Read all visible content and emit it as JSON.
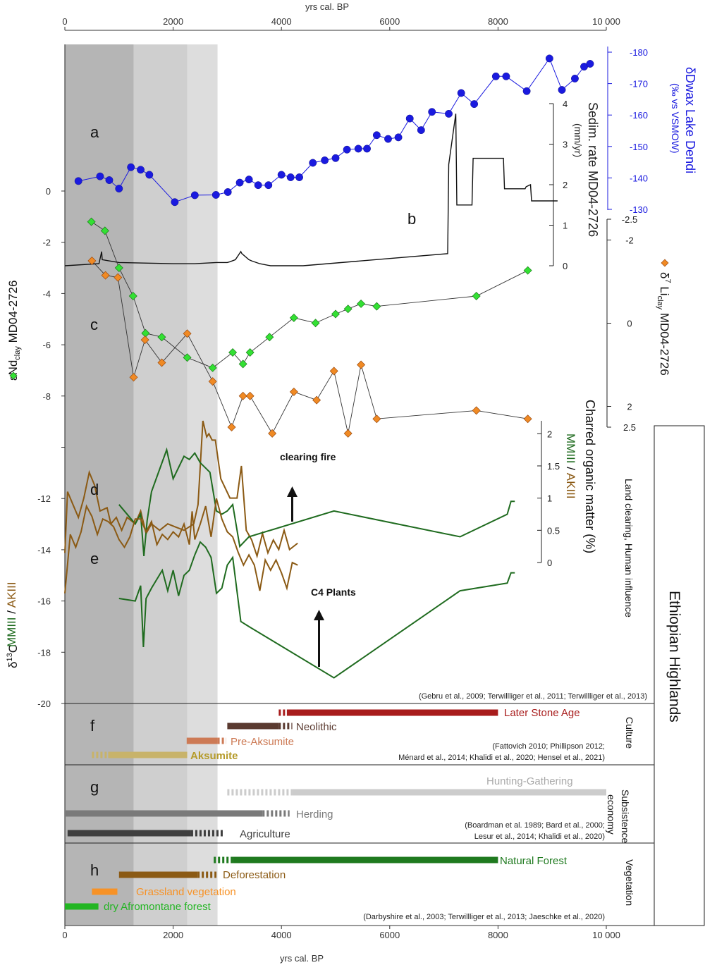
{
  "chart_data": {
    "type": "line",
    "x_axis": {
      "title": "yrs cal. BP",
      "range": [
        0,
        10000
      ],
      "ticks": [
        0,
        2000,
        4000,
        6000,
        8000,
        10000
      ],
      "tick_labels": [
        "0",
        "2000",
        "4000",
        "6000",
        "8000",
        "10 000"
      ]
    },
    "shading": [
      {
        "from": 0,
        "to": 1270,
        "color": "#b5b5b5"
      },
      {
        "from": 1270,
        "to": 2260,
        "color": "#cfcfcf"
      },
      {
        "from": 2260,
        "to": 2820,
        "color": "#dddddd"
      }
    ],
    "colors": {
      "blue": "#1a1adf",
      "green": "#1f6b1f",
      "brown": "#8b5a14",
      "orange": "#f08a24",
      "lime": "#2ecc2e"
    },
    "panels": {
      "a": {
        "letter": "a",
        "name": "δDwax Lake Dendi",
        "unit": "(‰ vs VSMOW)",
        "ticks": [
          -180,
          -170,
          -160,
          -150,
          -140,
          -130
        ],
        "tick_labels": [
          "-180",
          "-170",
          "-160",
          "-150",
          "-140",
          "-130"
        ],
        "range": [
          -130,
          -180
        ],
        "x": [
          250,
          650,
          820,
          1000,
          1220,
          1400,
          1560,
          2030,
          2400,
          2790,
          3010,
          3230,
          3400,
          3570,
          3760,
          4000,
          4170,
          4330,
          4580,
          4800,
          5000,
          5210,
          5420,
          5580,
          5760,
          5970,
          6160,
          6370,
          6580,
          6780,
          7090,
          7320,
          7560,
          7960,
          8150,
          8530,
          8950,
          9180,
          9420,
          9590,
          9700
        ],
        "y": [
          -139,
          -140.5,
          -139.3,
          -136.6,
          -143.4,
          -142.6,
          -141,
          -132.3,
          -134.5,
          -134.6,
          -135.5,
          -138.5,
          -139.5,
          -137.7,
          -137.7,
          -141,
          -140.2,
          -140.2,
          -144.8,
          -145.6,
          -146.3,
          -149,
          -149.3,
          -149.3,
          -153.6,
          -152.4,
          -152.9,
          -158.9,
          -155.2,
          -161,
          -160.4,
          -167,
          -163.5,
          -172.3,
          -172.3,
          -167.6,
          -178,
          -168,
          -171.6,
          -175.4,
          -176.3
        ]
      },
      "b": {
        "letter": "b",
        "name": "Sedim. rate MD04-2726",
        "unit": "(mm/yr)",
        "ticks": [
          0,
          1,
          2,
          3,
          4
        ],
        "tick_labels": [
          "0",
          "1",
          "2",
          "3",
          "4"
        ],
        "x": [
          0,
          620,
          630,
          680,
          690,
          1000,
          2000,
          2400,
          2800,
          3000,
          3050,
          3150,
          3250,
          3270,
          3400,
          3450,
          3600,
          3800,
          4400,
          7070,
          7090,
          7220,
          7240,
          7360,
          7380,
          7520,
          7540,
          8100,
          8120,
          8500,
          8520,
          8600,
          8620,
          9100
        ],
        "y": [
          0,
          0.05,
          0.05,
          0.35,
          0.15,
          0.08,
          0.05,
          0.05,
          0.08,
          0.08,
          0.1,
          0.15,
          0.35,
          0.3,
          0.15,
          0.12,
          0.05,
          0.0,
          0.0,
          0.3,
          2.5,
          3.75,
          1.5,
          1.5,
          1.5,
          1.5,
          2.65,
          2.65,
          1.9,
          1.9,
          1.95,
          2.0,
          1.6,
          1.6
        ]
      },
      "c": {
        "letter": "c",
        "series": [
          {
            "name": "εNd",
            "name_sub": "clay",
            "name_rest": "MD04-2726",
            "ticks": [
              0,
              -2,
              -4,
              -6,
              -8,
              -10,
              -12,
              -14,
              -16,
              -18,
              -20
            ],
            "tick_labels": [
              "0",
              "-2",
              "-4",
              "-6",
              "-8",
              "",
              "-12",
              "-14",
              "-16",
              "-18",
              "-20"
            ],
            "x": [
              490,
              740,
              1000,
              1260,
              1490,
              1790,
              2260,
              2730,
              3100,
              3290,
              3420,
              3780,
              4230,
              4630,
              5000,
              5230,
              5470,
              5760,
              7600,
              8550
            ],
            "y": [
              -1.2,
              -1.55,
              -3,
              -4.1,
              -5.55,
              -5.7,
              -6.5,
              -6.9,
              -6.3,
              -6.75,
              -6.3,
              -5.7,
              -4.95,
              -5.15,
              -4.8,
              -4.6,
              -4.4,
              -4.5,
              -4.1,
              -3.1
            ]
          },
          {
            "name": "δ",
            "name_sup": "7",
            "name_mid": "Li",
            "name_sub": "clay",
            "name_rest": "MD04-2726",
            "ticks": [
              -2.5,
              -2,
              0,
              2,
              2.5
            ],
            "tick_labels": [
              "-2.5",
              "-2",
              "0",
              "2",
              "2.5"
            ],
            "x": [
              500,
              750,
              980,
              1270,
              1480,
              1790,
              2260,
              2730,
              3080,
              3290,
              3420,
              3830,
              4230,
              4650,
              4970,
              5230,
              5470,
              5760,
              7600,
              8550
            ],
            "y": [
              -1.5,
              -1.15,
              -1.1,
              1.3,
              0.4,
              0.95,
              0.25,
              1.4,
              2.5,
              1.75,
              1.75,
              2.65,
              1.65,
              1.85,
              1.15,
              2.65,
              1.0,
              2.3,
              2.1,
              2.3
            ]
          }
        ]
      },
      "d": {
        "letter": "d",
        "name": "Charred organic matter (%)",
        "ticks": [
          0,
          0.5,
          1,
          1.5,
          2
        ],
        "tick_labels": [
          "0",
          "0.5",
          "1",
          "1.5",
          "2"
        ],
        "annotation": "clearing fire",
        "green": {
          "name": "MMIII",
          "x": [
            1000,
            1300,
            1400,
            1460,
            1520,
            1600,
            1880,
            2000,
            2200,
            2300,
            2400,
            2500,
            2680,
            2800,
            2900,
            3000,
            3100,
            3230,
            3400,
            4970,
            7300,
            8170,
            8240,
            8310
          ],
          "y": [
            0.9,
            0.6,
            0.75,
            0.1,
            0.65,
            1.1,
            1.75,
            1.3,
            1.65,
            1.6,
            1.7,
            1.55,
            1.4,
            0.8,
            0.75,
            0.8,
            0.9,
            0.25,
            0.4,
            0.8,
            0.4,
            0.75,
            0.95,
            0.95
          ]
        },
        "brown": {
          "name": "AKIII",
          "x": [
            0,
            50,
            150,
            250,
            350,
            450,
            550,
            650,
            780,
            850,
            950,
            1050,
            1150,
            1300,
            1400,
            1500,
            1600,
            1750,
            1900,
            2050,
            2200,
            2380,
            2460,
            2550,
            2620,
            2660,
            2720,
            2780,
            2880,
            3050,
            3180,
            3260,
            3350,
            3450,
            3550,
            3650,
            3750,
            3850,
            3950,
            4050,
            4150,
            4300
          ],
          "y": [
            0.15,
            1.1,
            0.9,
            0.7,
            1.0,
            1.4,
            1.2,
            0.8,
            0.85,
            0.6,
            0.7,
            0.5,
            0.7,
            0.6,
            0.8,
            0.45,
            0.6,
            0.5,
            0.6,
            0.55,
            0.5,
            0.6,
            0.9,
            2.2,
            1.95,
            2.0,
            1.9,
            1.9,
            1.3,
            1.0,
            1.0,
            1.5,
            0.5,
            0.35,
            0.1,
            0.45,
            0.15,
            0.35,
            0.2,
            0.5,
            0.2,
            0.3
          ]
        }
      },
      "e": {
        "letter": "e",
        "name": "δ",
        "name_sup": "13",
        "name_rest": "C",
        "annotation": "C4 Plants",
        "green": {
          "name": "MMIII",
          "x": [
            1000,
            1300,
            1400,
            1450,
            1500,
            1600,
            1800,
            1900,
            2000,
            2100,
            2200,
            2300,
            2400,
            2500,
            2600,
            2700,
            2800,
            2900,
            3000,
            3100,
            3250,
            3400,
            4970,
            7300,
            8170,
            8240,
            8310
          ],
          "y": [
            -15.9,
            -16,
            -15.4,
            -17.8,
            -15.9,
            -15.5,
            -14.8,
            -15.6,
            -14.8,
            -15.8,
            -15,
            -14.8,
            -14.2,
            -13.7,
            -13.9,
            -14.3,
            -15.7,
            -15.5,
            -14.6,
            -14.3,
            -16.8,
            -17,
            -19,
            -15.6,
            -15.3,
            -14.9,
            -14.9
          ]
        },
        "brown": {
          "name": "AKIII",
          "x": [
            0,
            100,
            200,
            300,
            400,
            500,
            600,
            700,
            800,
            900,
            1000,
            1100,
            1200,
            1300,
            1400,
            1500,
            1600,
            1700,
            1800,
            1900,
            2000,
            2100,
            2200,
            2300,
            2350,
            2400,
            2500,
            2600,
            2700,
            2800,
            2900,
            3000,
            3100,
            3200,
            3300,
            3400,
            3500,
            3600,
            3700,
            3800,
            3900,
            4000,
            4100,
            4200,
            4300
          ],
          "y": [
            -15.7,
            -13.4,
            -13.9,
            -13.3,
            -12.3,
            -12.7,
            -13.4,
            -12.8,
            -12.9,
            -13.1,
            -13.6,
            -13.9,
            -13.5,
            -12.8,
            -12.8,
            -13.3,
            -12.9,
            -13.8,
            -13.4,
            -13.6,
            -13.3,
            -13.5,
            -13,
            -13.8,
            -12.5,
            -13.6,
            -13,
            -12.3,
            -13.5,
            -12,
            -12.8,
            -13.3,
            -13.5,
            -14.1,
            -14.6,
            -14.2,
            -14.6,
            -15.6,
            -14.4,
            -14.8,
            -14.4,
            -14.9,
            -15.5,
            -14.5,
            -14.6
          ]
        }
      },
      "e_ref": "(Gebru et al., 2009; Terwillliger et al., 2011; Terwillliger et al., 2013)",
      "d_side_label": "Land clearing, Human influence",
      "dual_axis_label_green": "MMIII",
      "dual_axis_sep": " / ",
      "dual_axis_label_brown": "AKIII",
      "f": {
        "letter": "f",
        "side_label": "Culture",
        "bars": [
          {
            "label": "Later Stone Age",
            "from": 4100,
            "to": 8000,
            "dash_from": 3950,
            "color": "#a81c1c"
          },
          {
            "label": "Neolithic",
            "from": 3000,
            "to": 3950,
            "dash_to": 4200,
            "color": "#5a3a30"
          },
          {
            "label": "Pre-Aksumite",
            "from": 2250,
            "to": 2820,
            "dash_to": 2980,
            "color": "#cd7a55"
          },
          {
            "label": "Aksumite",
            "from": 800,
            "to": 2260,
            "dash_from": 500,
            "color": "#c8b36a"
          }
        ],
        "references": [
          "(Fattovich 2010; Phillipson 2012;",
          "Ménard et al., 2014; Khalidi et al., 2020; Hensel et al., 2021)"
        ]
      },
      "g": {
        "letter": "g",
        "side_label": [
          "Subsistence",
          "economy"
        ],
        "bars": [
          {
            "label": "Hunting-Gathering",
            "from": 4200,
            "to": 10000,
            "dash_from": 3000,
            "color": "#cccccc"
          },
          {
            "label": "Herding",
            "from": 0,
            "to": 3650,
            "dash_to": 4150,
            "color": "#7a7a7a"
          },
          {
            "label": "Agriculture",
            "from": 50,
            "to": 2330,
            "dash_to": 2950,
            "color": "#3f3f3f"
          }
        ],
        "references": [
          "(Boardman et al. 1989; Bard et al., 2000;",
          "Lesur et al., 2014; Khalidi et al., 2020)"
        ]
      },
      "h": {
        "letter": "h",
        "side_label": "Vegetation",
        "bars": [
          {
            "label": "Natural Forest",
            "from": 3100,
            "to": 8000,
            "dash_from": 2750,
            "color": "#1f7a1f"
          },
          {
            "label": "Deforestation",
            "from": 1000,
            "to": 2450,
            "dash_to": 2800,
            "color": "#8b5a14"
          },
          {
            "label": "Grassland vegetation",
            "from": 500,
            "to": 970,
            "color": "#f79226"
          },
          {
            "label": "dry Afromontane forest",
            "from": 0,
            "to": 620,
            "color": "#22b522"
          }
        ],
        "references": [
          "(Darbyshire et al., 2003; Terwillliger et al., 2013; Jaeschke et al., 2020)"
        ]
      },
      "region_label": "Ethiopian Highlands"
    }
  }
}
